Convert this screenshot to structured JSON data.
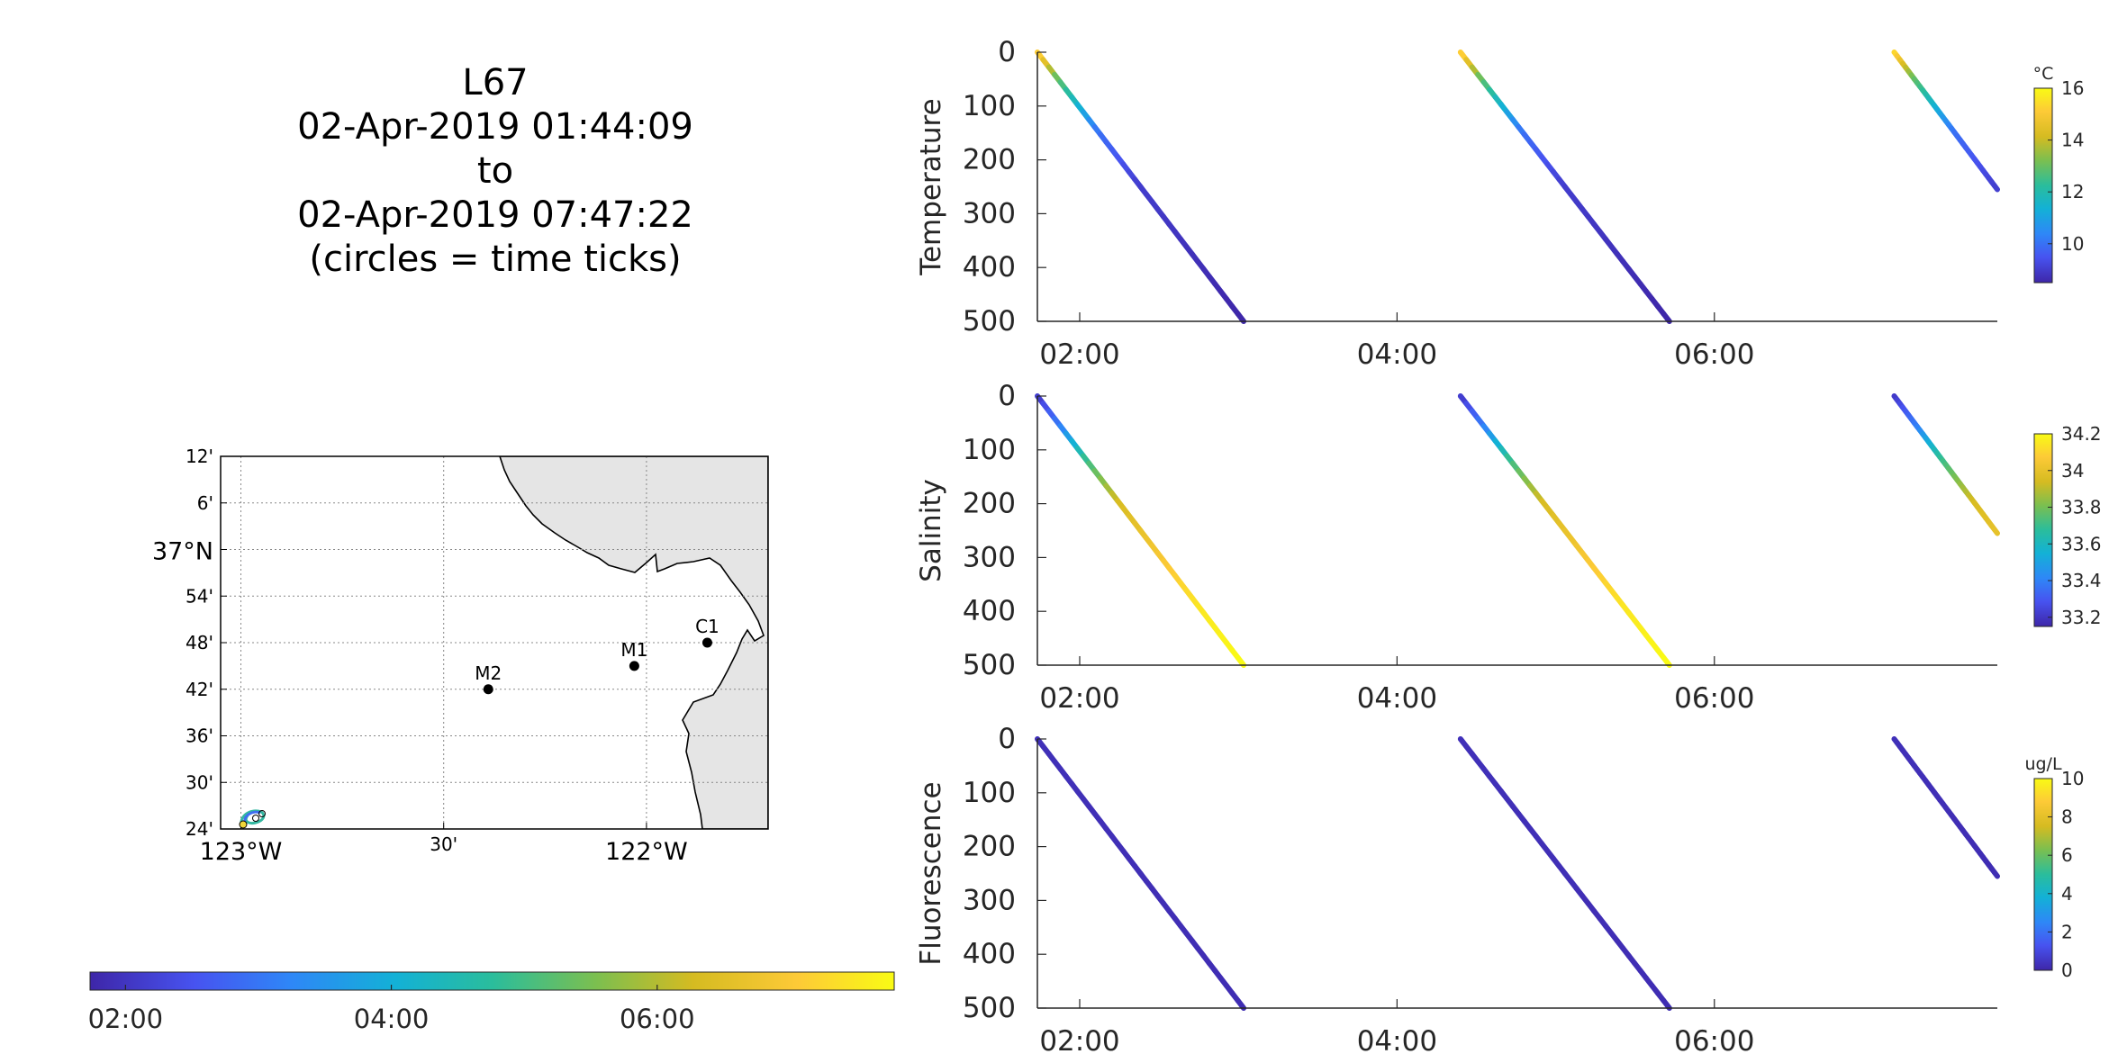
{
  "title_lines": [
    "L67",
    "02-Apr-2019 01:44:09",
    "to",
    "02-Apr-2019 07:47:22",
    "(circles = time ticks)"
  ],
  "map": {
    "lat_labels": [
      "12'",
      "6'",
      "37°N",
      "54'",
      "48'",
      "42'",
      "36'",
      "30'",
      "24'"
    ],
    "lon_labels": [
      "123°W",
      "30'",
      "122°W"
    ],
    "stations": [
      {
        "name": "M2",
        "lon": -122.39,
        "lat": 36.7
      },
      {
        "name": "M1",
        "lon": -122.03,
        "lat": 36.75
      },
      {
        "name": "C1",
        "lon": -121.85,
        "lat": 36.8
      }
    ],
    "land_color": "#e5e5e5"
  },
  "time_colorbar": {
    "ticks": [
      "02:00",
      "04:00",
      "06:00"
    ]
  },
  "chart_data": [
    {
      "type": "scatter",
      "ylabel": "Temperature",
      "x_ticks": [
        "02:00",
        "04:00",
        "06:00"
      ],
      "y_ticks": [
        "0",
        "100",
        "200",
        "300",
        "400",
        "500"
      ],
      "ylim": [
        500,
        0
      ],
      "xlim": [
        "01:44",
        "07:47"
      ],
      "colorbar": {
        "unit": "°C",
        "ticks": [
          "10",
          "12",
          "14",
          "16"
        ],
        "range": [
          8.5,
          16
        ]
      },
      "profiles": [
        {
          "start": "01:44",
          "end": "03:02",
          "depth_start": 0,
          "depth_end": 500,
          "color_by_depth": [
            [
              0,
              15.5
            ],
            [
              50,
              13
            ],
            [
              100,
              11.5
            ],
            [
              150,
              10
            ],
            [
              250,
              9
            ],
            [
              500,
              8.5
            ]
          ]
        },
        {
          "start": "04:24",
          "end": "05:43",
          "depth_start": 0,
          "depth_end": 500,
          "color_by_depth": [
            [
              0,
              15.5
            ],
            [
              50,
              13
            ],
            [
              100,
              11.5
            ],
            [
              150,
              10
            ],
            [
              250,
              9
            ],
            [
              500,
              8.5
            ]
          ]
        },
        {
          "start": "07:08",
          "end": "07:47",
          "depth_start": 0,
          "depth_end": 255,
          "color_by_depth": [
            [
              0,
              15.5
            ],
            [
              50,
              13
            ],
            [
              100,
              11.5
            ],
            [
              150,
              10
            ],
            [
              255,
              9
            ]
          ]
        }
      ]
    },
    {
      "type": "scatter",
      "ylabel": "Salinity",
      "x_ticks": [
        "02:00",
        "04:00",
        "06:00"
      ],
      "y_ticks": [
        "0",
        "100",
        "200",
        "300",
        "400",
        "500"
      ],
      "ylim": [
        500,
        0
      ],
      "xlim": [
        "01:44",
        "07:47"
      ],
      "colorbar": {
        "unit": "",
        "ticks": [
          "33.2",
          "33.4",
          "33.6",
          "33.8",
          "34",
          "34.2"
        ],
        "range": [
          33.15,
          34.2
        ]
      },
      "profiles": [
        {
          "start": "01:44",
          "end": "03:02",
          "depth_start": 0,
          "depth_end": 500,
          "color_by_depth": [
            [
              0,
              33.2
            ],
            [
              60,
              33.4
            ],
            [
              120,
              33.7
            ],
            [
              200,
              33.95
            ],
            [
              300,
              34.05
            ],
            [
              400,
              34.15
            ],
            [
              500,
              34.2
            ]
          ]
        },
        {
          "start": "04:24",
          "end": "05:43",
          "depth_start": 0,
          "depth_end": 500,
          "color_by_depth": [
            [
              0,
              33.2
            ],
            [
              60,
              33.4
            ],
            [
              120,
              33.7
            ],
            [
              200,
              33.95
            ],
            [
              300,
              34.05
            ],
            [
              400,
              34.15
            ],
            [
              500,
              34.2
            ]
          ]
        },
        {
          "start": "07:08",
          "end": "07:47",
          "depth_start": 0,
          "depth_end": 255,
          "color_by_depth": [
            [
              0,
              33.2
            ],
            [
              60,
              33.4
            ],
            [
              120,
              33.7
            ],
            [
              200,
              33.95
            ],
            [
              255,
              34.0
            ]
          ]
        }
      ]
    },
    {
      "type": "scatter",
      "ylabel": "Fluorescence",
      "x_ticks": [
        "02:00",
        "04:00",
        "06:00"
      ],
      "y_ticks": [
        "0",
        "100",
        "200",
        "300",
        "400",
        "500"
      ],
      "ylim": [
        500,
        0
      ],
      "xlim": [
        "01:44",
        "07:47"
      ],
      "colorbar": {
        "unit": "ug/L",
        "ticks": [
          "0",
          "2",
          "4",
          "6",
          "8",
          "10"
        ],
        "range": [
          0,
          10
        ]
      },
      "profiles": [
        {
          "start": "01:44",
          "end": "03:02",
          "depth_start": 0,
          "depth_end": 500,
          "color_by_depth": [
            [
              0,
              0.3
            ],
            [
              500,
              0.2
            ]
          ]
        },
        {
          "start": "04:24",
          "end": "05:43",
          "depth_start": 0,
          "depth_end": 500,
          "color_by_depth": [
            [
              0,
              0.3
            ],
            [
              500,
              0.2
            ]
          ]
        },
        {
          "start": "07:08",
          "end": "07:47",
          "depth_start": 0,
          "depth_end": 255,
          "color_by_depth": [
            [
              0,
              0.3
            ],
            [
              255,
              0.2
            ]
          ]
        }
      ]
    }
  ]
}
